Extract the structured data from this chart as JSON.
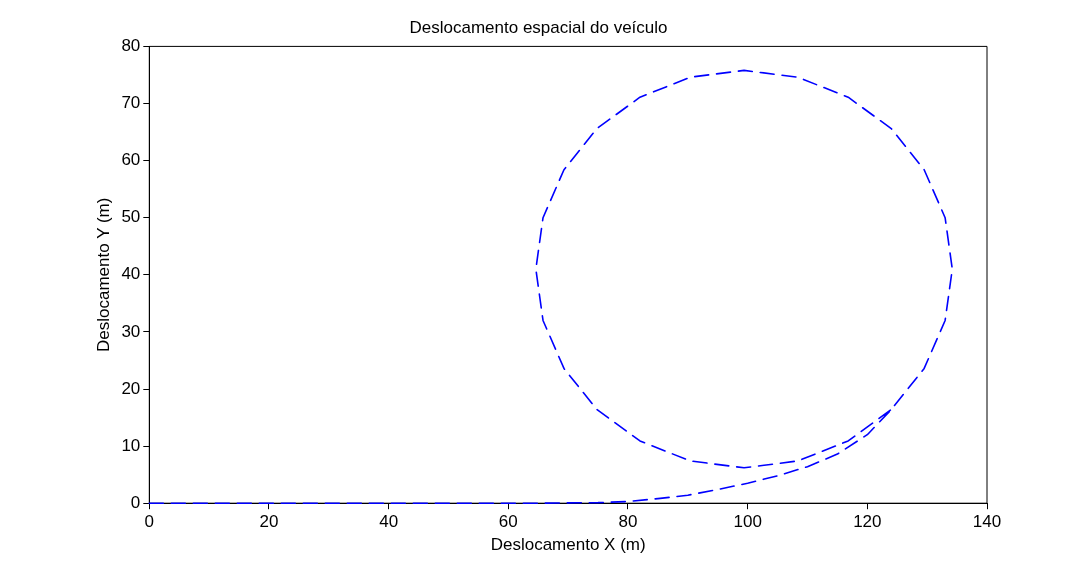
{
  "chart_data": {
    "type": "line",
    "title": "Deslocamento espacial do veículo",
    "xlabel": "Deslocamento X (m)",
    "ylabel": "Deslocamento Y (m)",
    "x": [
      0,
      65,
      75,
      80,
      85,
      90,
      95,
      100,
      105,
      110,
      115,
      120,
      124,
      129.5,
      133,
      134.2,
      133,
      129.5,
      124,
      116.8,
      108.4,
      99.4,
      90.4,
      82,
      74.8,
      69.3,
      65.8,
      64.6,
      65.8,
      69.3,
      74.8,
      82,
      90.4,
      99.4,
      108.4,
      116.8,
      124
    ],
    "series": [
      {
        "color": "#0000ff",
        "values": [
          0,
          0,
          0.1,
          0.3,
          0.8,
          1.4,
          2.4,
          3.5,
          4.8,
          6.4,
          8.6,
          12,
          16.4,
          23.6,
          32,
          41,
          50,
          58.4,
          65.6,
          71.1,
          74.6,
          75.8,
          74.6,
          71.1,
          65.6,
          58.4,
          50,
          41,
          32,
          23.6,
          16.4,
          10.9,
          7.4,
          6.2,
          7.4,
          10.9,
          16.4
        ]
      }
    ],
    "xlim": [
      0,
      140
    ],
    "xticks": [
      0,
      20,
      40,
      60,
      80,
      100,
      120,
      140
    ],
    "ylim": [
      0,
      80
    ],
    "yticks": [
      0,
      10,
      20,
      30,
      40,
      50,
      60,
      70,
      80
    ],
    "grid": false,
    "legend": false,
    "marker": "none",
    "line_style": "dashed"
  }
}
